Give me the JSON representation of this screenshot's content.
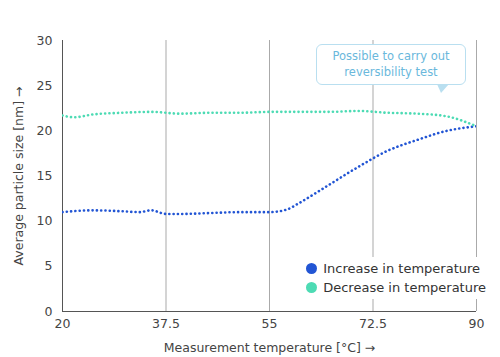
{
  "chart_data": {
    "type": "line",
    "x_label": "Measurement temperature [°C]",
    "y_label": "Average particle size [nm]",
    "annotation": "Possible to carry out reversibility test",
    "xlim": [
      20,
      90
    ],
    "xticks": [
      20,
      37.5,
      55,
      72.5,
      90
    ],
    "ylim": [
      0,
      30
    ],
    "yticks": [
      0,
      5,
      10,
      15,
      20,
      25,
      30
    ],
    "grid": true,
    "legend": "lower right",
    "line_style": "dotted",
    "series": [
      {
        "name": "Increase in temperature",
        "color": "#2255d4",
        "x": [
          20,
          25,
          30,
          33,
          35,
          37.5,
          40,
          45,
          50,
          55,
          58,
          60,
          65,
          70,
          75,
          80,
          85,
          90
        ],
        "values": [
          11,
          11.2,
          11.1,
          11.0,
          11.2,
          10.8,
          10.8,
          10.9,
          11,
          11,
          11.3,
          12,
          14,
          16,
          17.8,
          19,
          20,
          20.5
        ]
      },
      {
        "name": "Decrease in temperature",
        "color": "#4ddbb4",
        "x": [
          20,
          22,
          25,
          30,
          35,
          40,
          45,
          50,
          55,
          60,
          65,
          70,
          75,
          80,
          85,
          90
        ],
        "values": [
          21.7,
          21.5,
          21.8,
          22,
          22.1,
          21.9,
          22,
          22,
          22.1,
          22.1,
          22.1,
          22.2,
          22,
          21.9,
          21.6,
          20.5
        ]
      }
    ]
  }
}
